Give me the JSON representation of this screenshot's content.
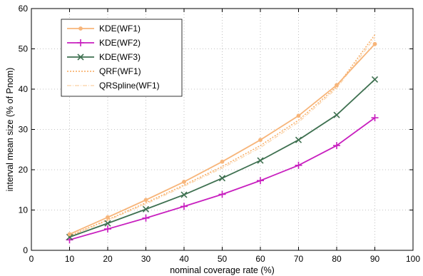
{
  "chart_data": {
    "type": "line",
    "title": "",
    "xlabel": "nominal coverage rate (%)",
    "ylabel": "interval mean size (% of Pnom)",
    "xlim": [
      0,
      100
    ],
    "ylim": [
      0,
      60
    ],
    "xticks": [
      0,
      10,
      20,
      30,
      40,
      50,
      60,
      70,
      80,
      90,
      100
    ],
    "yticks": [
      0,
      10,
      20,
      30,
      40,
      50,
      60
    ],
    "grid": true,
    "legend_position": "top-left",
    "x": [
      10,
      20,
      30,
      40,
      50,
      60,
      70,
      80,
      90
    ],
    "series": [
      {
        "name": "KDE(WF1)",
        "color": "#f7b57a",
        "line_style": "solid",
        "marker": "dot",
        "values": [
          4.0,
          8.2,
          12.5,
          17.0,
          22.0,
          27.4,
          33.4,
          41.0,
          51.2
        ]
      },
      {
        "name": "KDE(WF2)",
        "color": "#c81fbf",
        "line_style": "solid",
        "marker": "plus",
        "values": [
          2.6,
          5.3,
          8.0,
          10.9,
          13.9,
          17.3,
          21.1,
          26.0,
          32.9
        ]
      },
      {
        "name": "KDE(WF3)",
        "color": "#3e7050",
        "line_style": "solid",
        "marker": "x",
        "values": [
          3.3,
          6.7,
          10.2,
          13.8,
          17.9,
          22.3,
          27.4,
          33.6,
          42.4
        ]
      },
      {
        "name": "QRF(WF1)",
        "color": "#f7a85c",
        "line_style": "dotted",
        "marker": "none",
        "values": [
          3.6,
          7.6,
          11.8,
          16.2,
          20.8,
          26.0,
          32.3,
          40.6,
          53.5
        ]
      },
      {
        "name": "QRSpline(WF1)",
        "color": "#fbd9b4",
        "line_style": "dashdot",
        "marker": "none",
        "values": [
          3.5,
          7.4,
          11.5,
          15.9,
          20.4,
          25.5,
          31.8,
          40.2,
          52.8
        ]
      }
    ]
  }
}
